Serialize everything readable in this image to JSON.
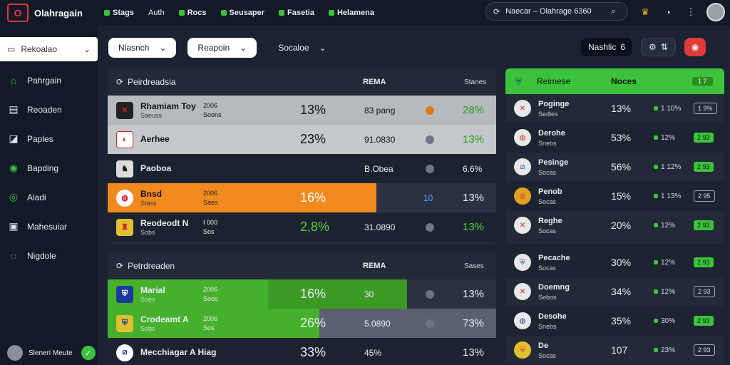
{
  "brand": {
    "name": "Olahragain",
    "logo_letter": "O"
  },
  "topnav": [
    "Stags",
    "Auth",
    "Rocs",
    "Seusaper",
    "Fasetia",
    "Helamena"
  ],
  "search": {
    "value": "Naecar – Olahrage 6360"
  },
  "sidebar": {
    "select_label": "Rekoalao",
    "items": [
      {
        "label": "Pahrgain",
        "icon": "home-icon"
      },
      {
        "label": "Reoaden",
        "icon": "board-icon"
      },
      {
        "label": "Paples",
        "icon": "chart-icon"
      },
      {
        "label": "Bapding",
        "icon": "check-icon"
      },
      {
        "label": "Aladi",
        "icon": "globe-icon"
      },
      {
        "label": "Mahesuiar",
        "icon": "panel-icon"
      },
      {
        "label": "Nigdole",
        "icon": "chat-icon"
      }
    ],
    "user": "Sleneri Meute"
  },
  "filters": [
    "Nlasnch",
    "Reapoin",
    "Socaloe"
  ],
  "right_controls": {
    "label": "Nashlic",
    "count": "6"
  },
  "panel1": {
    "title": "Peirdreadsia",
    "col_mid": "REMA",
    "col_right": "Stanes",
    "rows": [
      {
        "name": "Rhamiam Toy",
        "sub": "Saeuss",
        "mini1": "2006",
        "mini2": "Soons",
        "pct1": "13%",
        "mid": "83 pang",
        "pct2": "28%",
        "style": "gray"
      },
      {
        "name": "Aerhee",
        "sub": "",
        "mini1": "",
        "mini2": "",
        "pct1": "23%",
        "mid": "91.0830",
        "pct2": "13%",
        "style": "lgray"
      },
      {
        "name": "Paoboa",
        "sub": "",
        "mini1": "",
        "mini2": "",
        "pct1": "",
        "mid": "B.Obea",
        "pct2": "6.6%",
        "style": "dark"
      },
      {
        "name": "Bnsd",
        "sub": "Stass",
        "mini1": "2006",
        "mini2": "Saes",
        "pct1": "16%",
        "mid": "10",
        "pct2": "13%",
        "style": "orange"
      },
      {
        "name": "Reodeodt N",
        "sub": "Sobs",
        "mini1": "I 000",
        "mini2": "Sos",
        "pct1": "2,8%",
        "mid": "31.0890",
        "pct2": "13%",
        "style": "dark"
      }
    ]
  },
  "panel2": {
    "title": "Petrdreaden",
    "col_mid": "REMA",
    "col_right": "Sases",
    "rows": [
      {
        "name": "Marial",
        "sub": "Soes",
        "mini1": "2006",
        "mini2": "Soos",
        "pct1": "16%",
        "mid": "30 ",
        "pct2": "13%",
        "style": "green"
      },
      {
        "name": "Crodeamt A",
        "sub": "Sobs",
        "mini1": "2006",
        "mini2": "Sos",
        "pct1": "26%",
        "mid": "5.0890",
        "pct2": "73%",
        "style": "green2"
      },
      {
        "name": "Mecchiagar A Hiag",
        "sub": "",
        "mini1": "",
        "mini2": "",
        "pct1": "33%",
        "mid": "45%",
        "pct2": "13%",
        "style": "dark"
      }
    ]
  },
  "rpanel1": {
    "head1": "Reimese",
    "head2": "Noces",
    "tag": "1 7",
    "rows": [
      {
        "name": "Poginge",
        "sub": "Sedles",
        "pct": "13%",
        "ind": "1 10%",
        "badge": "1 9%",
        "b": "o"
      },
      {
        "name": "Derohe",
        "sub": "Snebs",
        "pct": "53%",
        "ind": "12%",
        "badge": "2 93",
        "b": "g"
      },
      {
        "name": "Pesinge",
        "sub": "Socas",
        "pct": "56%",
        "ind": "1 12%",
        "badge": "2 93",
        "b": "g"
      },
      {
        "name": "Penob",
        "sub": "Socas",
        "pct": "15%",
        "ind": "1 13%",
        "badge": "2 95",
        "b": "o"
      },
      {
        "name": "Reghe",
        "sub": "Socas",
        "pct": "20%",
        "ind": "12%",
        "badge": "2 93",
        "b": "g"
      }
    ]
  },
  "rpanel2": {
    "rows": [
      {
        "name": "Pecache",
        "sub": "Socas",
        "pct": "30%",
        "ind": "12%",
        "badge": "2 93",
        "b": "g"
      },
      {
        "name": "Doemng",
        "sub": "Sebos",
        "pct": "34%",
        "ind": "12%",
        "badge": "2 93",
        "b": "o"
      },
      {
        "name": "Desohe",
        "sub": "Snebs",
        "pct": "35%",
        "ind": "30%",
        "badge": "2 93",
        "b": "g"
      },
      {
        "name": "De",
        "sub": "Socas",
        "pct": "107",
        "ind": "23%",
        "badge": "2 93",
        "b": "o"
      }
    ]
  }
}
